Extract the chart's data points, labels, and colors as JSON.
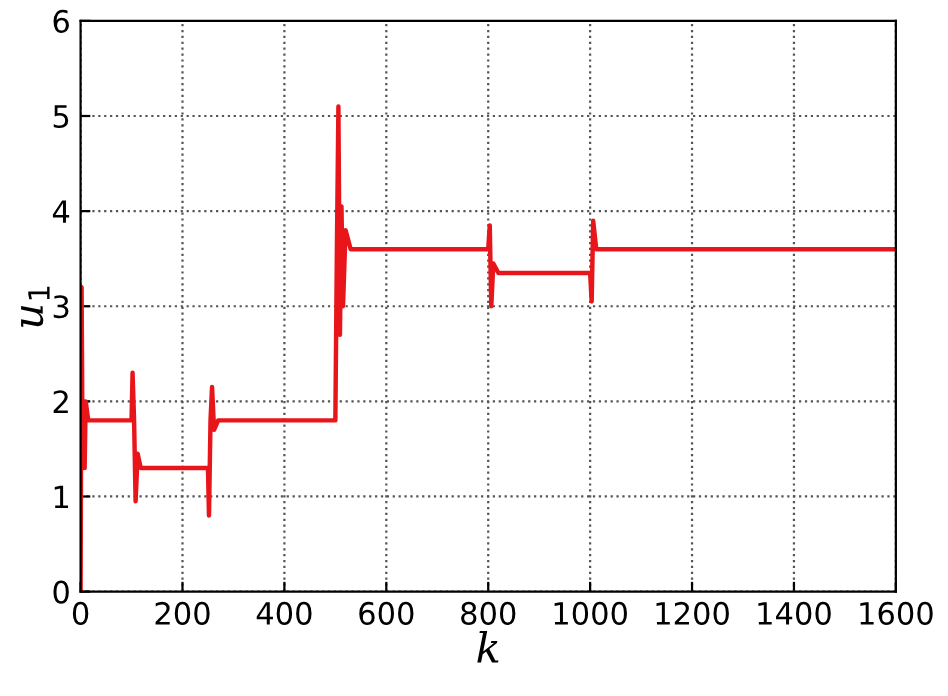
{
  "chart_data": {
    "type": "line",
    "xlabel": "k",
    "ylabel": "u$_{1}$",
    "xlim": [
      0,
      1600
    ],
    "ylim": [
      0,
      6
    ],
    "xticks": [
      0,
      200,
      400,
      600,
      800,
      1000,
      1200,
      1400,
      1600
    ],
    "yticks": [
      0,
      1,
      2,
      3,
      4,
      5,
      6
    ],
    "grid": true,
    "marker": "none",
    "line_style": "solid",
    "series": [
      {
        "color": "#e8161b",
        "x": [
          0,
          2,
          4,
          6,
          8,
          10,
          15,
          100,
          102,
          105,
          108,
          112,
          118,
          250,
          252,
          255,
          258,
          262,
          270,
          500,
          503,
          506,
          509,
          512,
          515,
          520,
          530,
          800,
          803,
          806,
          810,
          820,
          1000,
          1003,
          1006,
          1012,
          1600
        ],
        "values": [
          0,
          3.2,
          1.3,
          2.0,
          1.3,
          2.0,
          1.8,
          1.8,
          2.3,
          1.8,
          0.95,
          1.45,
          1.3,
          1.3,
          0.8,
          1.8,
          2.15,
          1.7,
          1.8,
          1.8,
          3.6,
          5.1,
          2.7,
          4.05,
          3.0,
          3.8,
          3.6,
          3.6,
          3.85,
          3.0,
          3.45,
          3.35,
          3.35,
          3.05,
          3.9,
          3.6,
          3.6
        ]
      }
    ]
  }
}
